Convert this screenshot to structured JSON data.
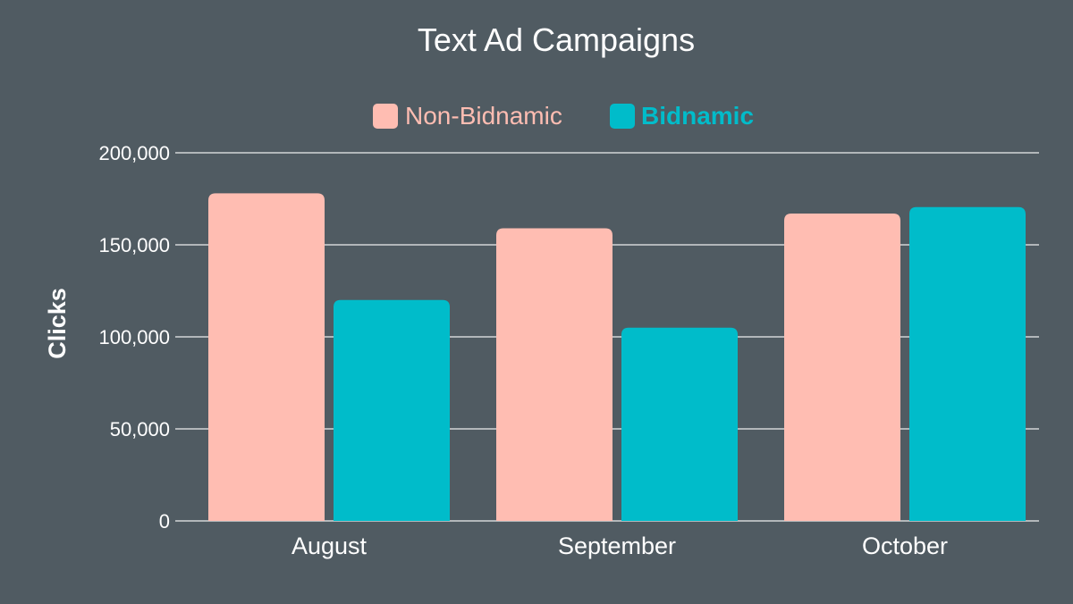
{
  "chart_data": {
    "type": "bar",
    "title": "Text Ad Campaigns",
    "ylabel": "Clicks",
    "xlabel": "",
    "categories": [
      "August",
      "September",
      "October"
    ],
    "series": [
      {
        "name": "Non-Bidnamic",
        "values": [
          178000,
          159000,
          167000
        ],
        "color": "#ffbdb2"
      },
      {
        "name": "Bidnamic",
        "values": [
          120000,
          105000,
          170500
        ],
        "color": "#00bcca"
      }
    ],
    "ylim": [
      0,
      200000
    ],
    "yticks": [
      0,
      50000,
      100000,
      150000,
      200000
    ],
    "ytick_labels": [
      "0",
      "50,000",
      "100,000",
      "150,000",
      "200,000"
    ],
    "grid": true,
    "legend_position": "top-center",
    "background_color": "#505b62"
  }
}
